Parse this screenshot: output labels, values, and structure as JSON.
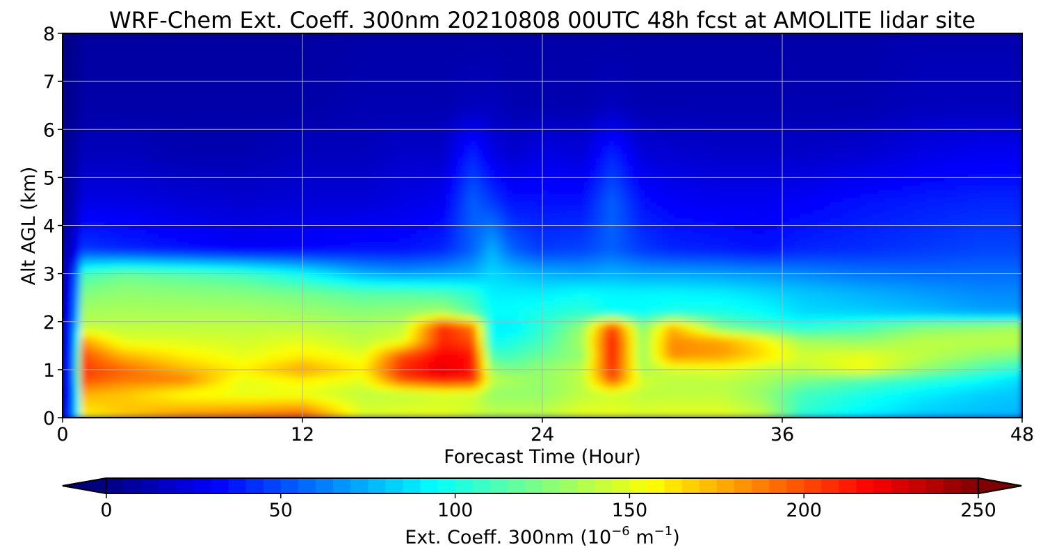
{
  "chart_data": {
    "type": "heatmap",
    "title": "WRF-Chem Ext. Coeff. 300nm  20210808 00UTC 48h fcst at AMOLITE lidar site",
    "xlabel": "Forecast Time (Hour)",
    "ylabel": "Alt AGL (km)",
    "xlim": [
      0,
      48
    ],
    "ylim": [
      0,
      8
    ],
    "xticks": [
      0,
      12,
      24,
      36,
      48
    ],
    "xtick_labels": [
      "0",
      "12",
      "24",
      "36",
      "48"
    ],
    "yticks": [
      0,
      1,
      2,
      3,
      4,
      5,
      6,
      7,
      8
    ],
    "ytick_labels": [
      "0",
      "1",
      "2",
      "3",
      "4",
      "5",
      "6",
      "7",
      "8"
    ],
    "grid": true,
    "colormap": "jet",
    "colorbar": {
      "orientation": "horizontal",
      "position": "bottom",
      "extend": "both",
      "range": [
        0,
        250
      ],
      "ticks": [
        0,
        50,
        100,
        150,
        200,
        250
      ],
      "tick_labels": [
        "0",
        "50",
        "100",
        "150",
        "200",
        "250"
      ],
      "label": "Ext. Coeff. 300nm  (10",
      "label_sup1": "−6",
      "label_mid": " m",
      "label_sup2": "−1",
      "label_end": ")"
    },
    "altitude_levels_km": [
      0,
      0.1,
      0.5,
      0.8,
      1.0,
      1.3,
      1.6,
      1.9,
      2.2,
      2.6,
      3.0,
      3.5,
      4.5,
      5.5,
      6.5,
      8.0
    ],
    "profiles": [
      {
        "hour": 0,
        "values": [
          25,
          25,
          22,
          22,
          22,
          22,
          22,
          22,
          20,
          18,
          15,
          10,
          5,
          3,
          2,
          2
        ]
      },
      {
        "hour": 0.6,
        "values": [
          60,
          60,
          50,
          55,
          55,
          55,
          50,
          50,
          40,
          35,
          30,
          20,
          12,
          8,
          5,
          3
        ]
      },
      {
        "hour": 1,
        "values": [
          150,
          160,
          175,
          200,
          205,
          200,
          180,
          140,
          135,
          125,
          110,
          45,
          25,
          15,
          10,
          8
        ]
      },
      {
        "hour": 3,
        "values": [
          165,
          170,
          170,
          190,
          195,
          175,
          150,
          140,
          135,
          130,
          120,
          40,
          25,
          15,
          10,
          8
        ]
      },
      {
        "hour": 6,
        "values": [
          185,
          180,
          155,
          188,
          175,
          160,
          148,
          140,
          135,
          128,
          115,
          35,
          22,
          12,
          10,
          8
        ]
      },
      {
        "hour": 9,
        "values": [
          190,
          185,
          150,
          150,
          160,
          150,
          145,
          140,
          135,
          126,
          110,
          30,
          20,
          12,
          10,
          8
        ]
      },
      {
        "hour": 12,
        "values": [
          195,
          192,
          150,
          160,
          180,
          160,
          150,
          140,
          132,
          122,
          95,
          32,
          22,
          15,
          10,
          8
        ]
      },
      {
        "hour": 15,
        "values": [
          150,
          148,
          140,
          150,
          160,
          150,
          140,
          136,
          128,
          115,
          75,
          35,
          22,
          15,
          12,
          10
        ]
      },
      {
        "hour": 17,
        "values": [
          150,
          150,
          140,
          200,
          210,
          200,
          150,
          140,
          130,
          115,
          70,
          35,
          25,
          18,
          12,
          10
        ]
      },
      {
        "hour": 19,
        "values": [
          150,
          150,
          145,
          215,
          225,
          220,
          210,
          210,
          135,
          112,
          72,
          40,
          28,
          18,
          12,
          10
        ]
      },
      {
        "hour": 20.5,
        "values": [
          145,
          145,
          145,
          210,
          215,
          215,
          200,
          190,
          115,
          105,
          75,
          55,
          55,
          40,
          15,
          10
        ]
      },
      {
        "hour": 21.5,
        "values": [
          140,
          140,
          130,
          140,
          130,
          110,
          95,
          90,
          95,
          90,
          85,
          75,
          45,
          25,
          15,
          10
        ]
      },
      {
        "hour": 22.5,
        "values": [
          140,
          140,
          130,
          135,
          125,
          110,
          100,
          90,
          95,
          90,
          80,
          55,
          35,
          20,
          12,
          10
        ]
      },
      {
        "hour": 24,
        "values": [
          140,
          140,
          130,
          130,
          130,
          120,
          110,
          105,
          100,
          90,
          75,
          45,
          35,
          25,
          12,
          10
        ]
      },
      {
        "hour": 26,
        "values": [
          150,
          150,
          140,
          140,
          140,
          130,
          135,
          130,
          105,
          95,
          72,
          48,
          35,
          22,
          12,
          10
        ]
      },
      {
        "hour": 27.5,
        "values": [
          155,
          150,
          145,
          200,
          210,
          215,
          215,
          205,
          95,
          92,
          75,
          55,
          55,
          40,
          15,
          10
        ]
      },
      {
        "hour": 29,
        "values": [
          150,
          148,
          140,
          145,
          135,
          130,
          130,
          125,
          95,
          92,
          72,
          45,
          35,
          22,
          12,
          10
        ]
      },
      {
        "hour": 30.5,
        "values": [
          150,
          150,
          140,
          140,
          145,
          185,
          185,
          175,
          100,
          92,
          72,
          40,
          30,
          20,
          12,
          10
        ]
      },
      {
        "hour": 33,
        "values": [
          150,
          150,
          140,
          140,
          150,
          180,
          180,
          120,
          100,
          90,
          70,
          38,
          28,
          18,
          12,
          10
        ]
      },
      {
        "hour": 35,
        "values": [
          145,
          140,
          130,
          135,
          140,
          165,
          160,
          110,
          95,
          85,
          68,
          35,
          28,
          18,
          12,
          10
        ]
      },
      {
        "hour": 37,
        "values": [
          105,
          105,
          110,
          125,
          140,
          145,
          135,
          100,
          85,
          80,
          65,
          40,
          30,
          18,
          12,
          10
        ]
      },
      {
        "hour": 40,
        "values": [
          90,
          92,
          100,
          115,
          155,
          150,
          130,
          110,
          82,
          75,
          60,
          42,
          35,
          20,
          12,
          10
        ]
      },
      {
        "hour": 43,
        "values": [
          80,
          82,
          90,
          105,
          130,
          140,
          140,
          125,
          78,
          70,
          58,
          45,
          38,
          25,
          15,
          12
        ]
      },
      {
        "hour": 46,
        "values": [
          78,
          78,
          82,
          95,
          110,
          130,
          140,
          130,
          72,
          65,
          58,
          48,
          40,
          28,
          15,
          12
        ]
      },
      {
        "hour": 48,
        "values": [
          76,
          76,
          80,
          85,
          100,
          125,
          140,
          135,
          70,
          65,
          58,
          48,
          40,
          28,
          15,
          12
        ]
      }
    ]
  }
}
